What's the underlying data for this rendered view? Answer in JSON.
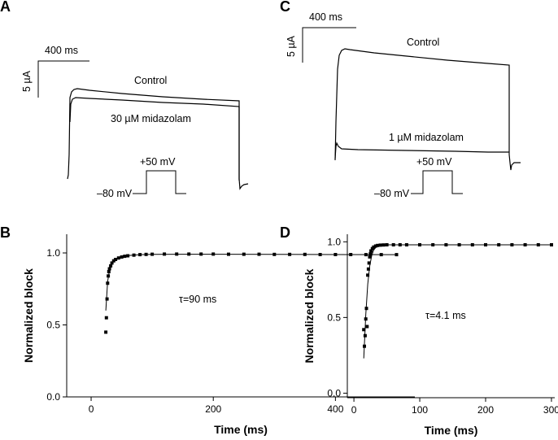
{
  "panels": {
    "A": {
      "letter": "A",
      "scale_time": "400 ms",
      "scale_current": "5 µA",
      "control_label": "Control",
      "drug_label": "30 µM midazolam",
      "protocol_high": "+50 mV",
      "protocol_low": "–80 mV"
    },
    "C": {
      "letter": "C",
      "scale_time": "400 ms",
      "scale_current": "5 µA",
      "control_label": "Control",
      "drug_label": "1 µM midazolam",
      "protocol_high": "+50 mV",
      "protocol_low": "–80 mV"
    },
    "B": {
      "letter": "B",
      "tau_label": "τ=90 ms"
    },
    "D": {
      "letter": "D",
      "tau_label": "τ=4.1 ms"
    }
  },
  "chart_data": [
    {
      "panel": "B",
      "type": "scatter",
      "xlabel": "Time (ms)",
      "ylabel": "Normalized block",
      "xlim": [
        -40,
        530
      ],
      "ylim": [
        0.0,
        1.13
      ],
      "xticks": [
        0,
        200,
        400
      ],
      "yticks": [
        0.0,
        0.5,
        1.0
      ],
      "xtick_labels": [
        "0",
        "200",
        "400"
      ],
      "ytick_labels": [
        "0.0",
        "0.5",
        "1.0"
      ],
      "tau_ms": 90,
      "series": [
        {
          "x": [
            24,
            25,
            26,
            27,
            28,
            29,
            30,
            32,
            34,
            37,
            40,
            45,
            50,
            55,
            60,
            70,
            80,
            90,
            100,
            120,
            140,
            160,
            180,
            200,
            225,
            250,
            275,
            300,
            325,
            350,
            375,
            400,
            425,
            450,
            475,
            500
          ],
          "values": [
            0.45,
            0.55,
            0.68,
            0.79,
            0.84,
            0.87,
            0.89,
            0.91,
            0.93,
            0.945,
            0.955,
            0.965,
            0.972,
            0.977,
            0.98,
            0.985,
            0.988,
            0.99,
            0.991,
            0.992,
            0.992,
            0.992,
            0.992,
            0.992,
            0.991,
            0.991,
            0.991,
            0.99,
            0.99,
            0.99,
            0.989,
            0.989,
            0.989,
            0.988,
            0.988,
            0.988
          ]
        }
      ],
      "fit": {
        "x": [
          24,
          27,
          30,
          35,
          40,
          50,
          60,
          80,
          100,
          150,
          200,
          300,
          400,
          500
        ],
        "values": [
          0.6,
          0.8,
          0.88,
          0.93,
          0.955,
          0.975,
          0.982,
          0.988,
          0.99,
          0.991,
          0.991,
          0.99,
          0.989,
          0.988
        ]
      }
    },
    {
      "panel": "D",
      "type": "scatter",
      "xlabel": "Time (ms)",
      "ylabel": "Normalized block",
      "xlim": [
        -10,
        305
      ],
      "ylim": [
        -0.03,
        1.05
      ],
      "xticks": [
        0,
        100,
        200,
        300
      ],
      "yticks": [
        0.0,
        0.5,
        1.0
      ],
      "xtick_labels": [
        "0",
        "100",
        "200",
        "300"
      ],
      "ytick_labels": [
        "0.0",
        "0.5",
        "1.0"
      ],
      "tau_ms": 4.1,
      "series": [
        {
          "x": [
            15,
            16,
            17,
            18,
            19,
            20,
            21,
            22,
            23,
            24,
            25,
            26,
            28,
            30,
            33,
            36,
            40,
            45,
            50,
            60,
            70,
            80,
            100,
            120,
            140,
            160,
            180,
            200,
            220,
            240,
            260,
            280,
            300
          ],
          "values": [
            0.42,
            0.31,
            0.38,
            0.49,
            0.56,
            0.44,
            0.78,
            0.82,
            0.86,
            0.9,
            0.92,
            0.94,
            0.955,
            0.965,
            0.972,
            0.976,
            0.978,
            0.979,
            0.98,
            0.98,
            0.98,
            0.98,
            0.98,
            0.98,
            0.98,
            0.98,
            0.98,
            0.98,
            0.98,
            0.98,
            0.98,
            0.98,
            0.98
          ]
        }
      ],
      "fit": {
        "x": [
          15,
          18,
          21,
          24,
          27,
          30,
          33,
          36,
          40,
          50,
          60,
          100,
          200,
          300
        ],
        "values": [
          0.23,
          0.52,
          0.72,
          0.84,
          0.91,
          0.945,
          0.962,
          0.972,
          0.977,
          0.98,
          0.98,
          0.98,
          0.98,
          0.98
        ]
      }
    }
  ]
}
